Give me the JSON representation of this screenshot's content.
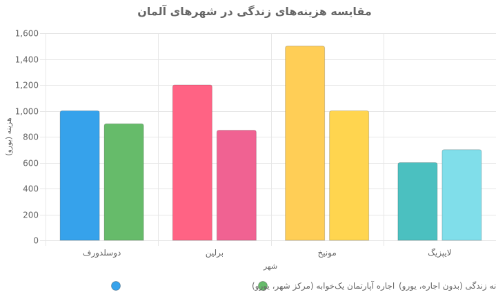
{
  "chart_data": {
    "type": "bar",
    "title": "مقایسه هزینه‌های زندگی در شهرهای آلمان",
    "xlabel": "شهر",
    "ylabel": "هزینه (یورو)",
    "ylim": [
      0,
      1600
    ],
    "yticks": [
      0,
      200,
      400,
      600,
      800,
      1000,
      1200,
      1400,
      1600
    ],
    "y_tick_labels": [
      "0",
      "200",
      "400",
      "600",
      "800",
      "1,000",
      "1,200",
      "1,400",
      "1,600"
    ],
    "grid": true,
    "legend_position": "bottom",
    "categories": [
      "دوسلدورف",
      "برلین",
      "مونیخ",
      "لایپزیگ"
    ],
    "series": [
      {
        "name": "اجاره آپارتمان یک‌خوابه (مرکز شهر، یورو)",
        "values": [
          1000,
          1200,
          1500,
          600
        ],
        "colors": [
          "#36a2eb",
          "#ff6384",
          "#ffce56",
          "#4bc0c0"
        ],
        "legend_color": "#36a2eb"
      },
      {
        "name": "هزینه ماهانه زندگی (بدون اجاره، یورو)",
        "values": [
          900,
          850,
          1000,
          700
        ],
        "colors": [
          "#66bb6a",
          "#f06292",
          "#ffd54f",
          "#80deea"
        ],
        "legend_color": "#66bb6a"
      }
    ]
  }
}
